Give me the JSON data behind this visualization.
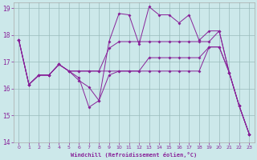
{
  "background_color": "#cce8ea",
  "line_color": "#882299",
  "grid_color": "#99bbbb",
  "xlabel": "Windchill (Refroidissement éolien,°C)",
  "xlim": [
    -0.5,
    23.5
  ],
  "ylim": [
    14,
    19.2
  ],
  "yticks": [
    14,
    15,
    16,
    17,
    18,
    19
  ],
  "xticks": [
    0,
    1,
    2,
    3,
    4,
    5,
    6,
    7,
    8,
    9,
    10,
    11,
    12,
    13,
    14,
    15,
    16,
    17,
    18,
    19,
    20,
    21,
    22,
    23
  ],
  "series": [
    {
      "x": [
        0,
        1,
        2,
        3,
        4,
        5,
        6,
        7,
        8,
        9,
        10,
        11,
        12,
        13,
        14,
        15,
        16,
        17,
        18,
        19,
        20,
        21,
        22,
        23
      ],
      "y": [
        17.8,
        16.15,
        16.5,
        16.5,
        16.9,
        16.65,
        16.4,
        15.3,
        15.55,
        16.5,
        16.65,
        16.65,
        16.65,
        16.65,
        16.65,
        16.65,
        16.65,
        16.65,
        16.65,
        17.55,
        17.55,
        16.6,
        15.35,
        14.3
      ]
    },
    {
      "x": [
        0,
        1,
        2,
        3,
        4,
        5,
        6,
        7,
        8,
        9,
        10,
        11,
        12,
        13,
        14,
        15,
        16,
        17,
        18,
        19,
        20,
        21,
        22,
        23
      ],
      "y": [
        17.8,
        16.15,
        16.5,
        16.5,
        16.9,
        16.65,
        16.65,
        16.65,
        16.65,
        16.65,
        16.65,
        16.65,
        16.65,
        17.15,
        17.15,
        17.15,
        17.15,
        17.15,
        17.15,
        17.55,
        17.55,
        16.6,
        15.35,
        14.3
      ]
    },
    {
      "x": [
        0,
        1,
        2,
        3,
        4,
        5,
        6,
        7,
        8,
        9,
        10,
        11,
        12,
        13,
        14,
        15,
        16,
        17,
        18,
        19,
        20,
        21,
        22,
        23
      ],
      "y": [
        17.8,
        16.15,
        16.5,
        16.5,
        16.9,
        16.65,
        16.65,
        16.65,
        16.65,
        17.5,
        17.75,
        17.75,
        17.75,
        17.75,
        17.75,
        17.75,
        17.75,
        17.75,
        17.75,
        17.75,
        18.15,
        16.6,
        15.35,
        14.3
      ]
    },
    {
      "x": [
        0,
        1,
        2,
        3,
        4,
        5,
        6,
        7,
        8,
        9,
        10,
        11,
        12,
        13,
        14,
        15,
        16,
        17,
        18,
        19,
        20,
        21,
        22,
        23
      ],
      "y": [
        17.8,
        16.15,
        16.5,
        16.5,
        16.9,
        16.65,
        16.3,
        16.05,
        15.55,
        17.75,
        18.8,
        18.75,
        17.65,
        19.05,
        18.75,
        18.75,
        18.45,
        18.75,
        17.8,
        18.15,
        18.15,
        16.6,
        15.35,
        14.3
      ]
    }
  ]
}
